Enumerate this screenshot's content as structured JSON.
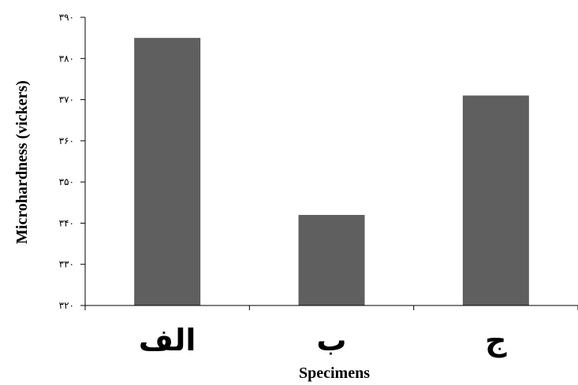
{
  "chart_data": {
    "type": "bar",
    "categories": [
      "الف",
      "ب",
      "ج"
    ],
    "values": [
      385,
      342,
      371
    ],
    "ylim": [
      320,
      390
    ],
    "yticks": [
      320,
      330,
      340,
      350,
      360,
      370,
      380,
      390
    ],
    "ytick_labels": [
      "۳۲۰",
      "۳۳۰",
      "۳۴۰",
      "۳۵۰",
      "۳۶۰",
      "۳۷۰",
      "۳۸۰",
      "۳۹۰"
    ],
    "xlabel": "Specimens",
    "ylabel": "Microhardness (vickers)",
    "bar_color": "#5f5f5f",
    "grid": false,
    "legend": false
  }
}
